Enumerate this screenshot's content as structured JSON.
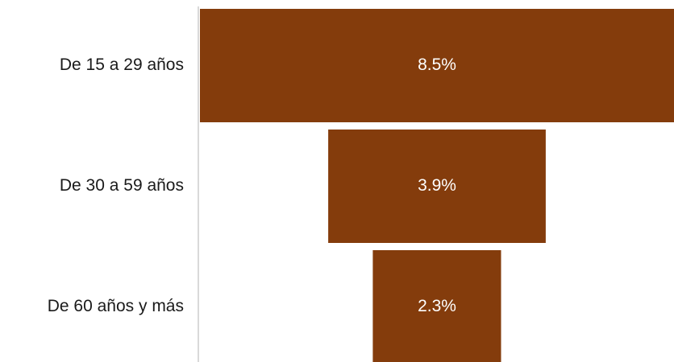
{
  "chart_data": {
    "type": "bar",
    "subtype": "funnel",
    "orientation": "horizontal",
    "categories": [
      "De 15 a 29 años",
      "De 30 a 59 años",
      "De 60 años y más"
    ],
    "values": [
      8.5,
      3.9,
      2.3
    ],
    "data_labels": [
      "8.5%",
      "3.9%",
      "2.3%"
    ],
    "unit": "%",
    "title": "",
    "xlabel": "",
    "ylabel": "",
    "grid": false,
    "legend": "none",
    "bar_color": "#843C0C",
    "label_color": "#FFFFFF"
  }
}
